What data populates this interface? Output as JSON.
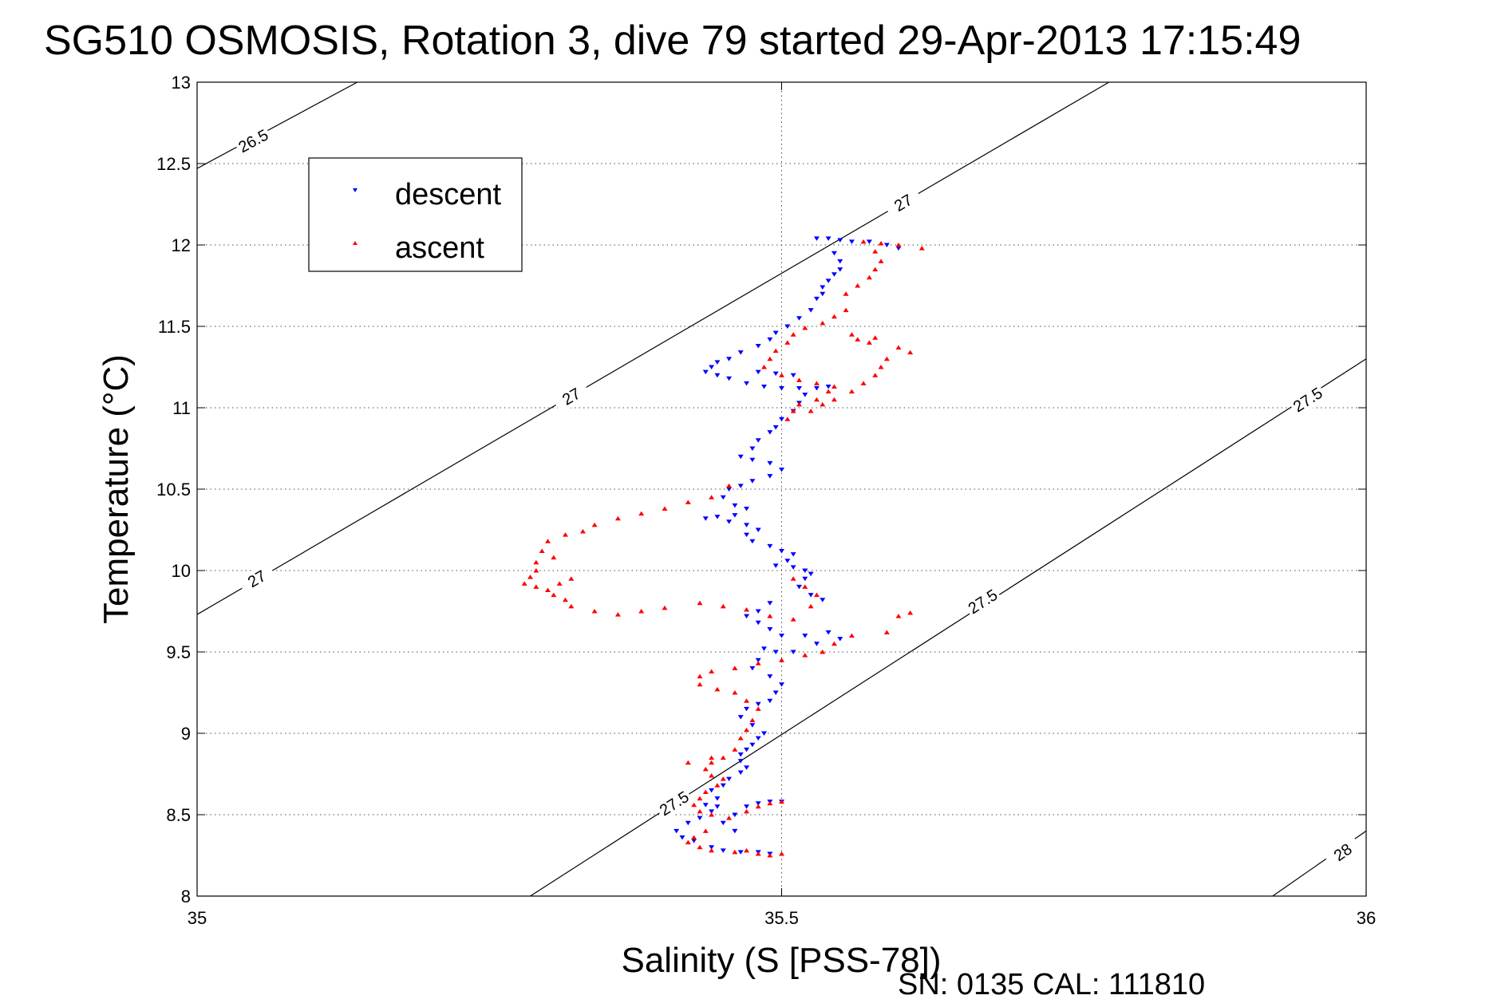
{
  "chart_data": {
    "type": "scatter",
    "title": "SG510 OSMOSIS, Rotation 3, dive 79 started 29-Apr-2013 17:15:49",
    "xlabel": "Salinity (S [PSS-78])",
    "ylabel": "Temperature (°C)",
    "xlim": [
      35,
      36
    ],
    "ylim": [
      8,
      13
    ],
    "xticks": [
      "35",
      "35.5",
      "36"
    ],
    "yticks": [
      "8",
      "8.5",
      "9",
      "9.5",
      "10",
      "10.5",
      "11",
      "11.5",
      "12",
      "12.5",
      "13"
    ],
    "xtick_values": [
      35,
      35.5,
      36
    ],
    "ytick_values": [
      8,
      8.5,
      9,
      9.5,
      10,
      10.5,
      11,
      11.5,
      12,
      12.5,
      13
    ],
    "grid": true,
    "legend_position": "top-left",
    "colors": {
      "descent": "#0000ff",
      "ascent": "#ff0000"
    },
    "markers": {
      "descent": "triangle-down",
      "ascent": "triangle-up"
    },
    "contours": [
      {
        "label": "26.5",
        "points": [
          [
            35.0,
            12.47
          ],
          [
            35.137,
            13.0
          ]
        ],
        "label_at": [
          [
            35.048,
            12.64
          ]
        ]
      },
      {
        "label": "27",
        "points": [
          [
            35.0,
            9.73
          ],
          [
            35.78,
            13.0
          ]
        ],
        "label_at": [
          [
            35.051,
            9.95
          ],
          [
            35.32,
            11.07
          ],
          [
            35.604,
            12.26
          ]
        ]
      },
      {
        "label": "27.5",
        "points": [
          [
            35.285,
            8.0
          ],
          [
            36.0,
            11.3
          ]
        ],
        "label_at": [
          [
            35.408,
            8.57
          ],
          [
            35.672,
            9.81
          ],
          [
            35.95,
            11.05
          ]
        ]
      },
      {
        "label": "28",
        "points": [
          [
            35.92,
            8.0
          ],
          [
            36.0,
            8.4
          ]
        ],
        "label_at": [
          [
            35.98,
            8.27
          ]
        ]
      }
    ],
    "series": [
      {
        "name": "descent",
        "marker": "triangle-down",
        "color": "#0000ff",
        "points": [
          [
            35.53,
            12.04
          ],
          [
            35.54,
            12.04
          ],
          [
            35.55,
            12.03
          ],
          [
            35.56,
            12.02
          ],
          [
            35.575,
            12.02
          ],
          [
            35.59,
            12.0
          ],
          [
            35.6,
            11.98
          ],
          [
            35.545,
            11.95
          ],
          [
            35.55,
            11.9
          ],
          [
            35.55,
            11.85
          ],
          [
            35.545,
            11.82
          ],
          [
            35.54,
            11.78
          ],
          [
            35.535,
            11.74
          ],
          [
            35.535,
            11.7
          ],
          [
            35.53,
            11.67
          ],
          [
            35.525,
            11.6
          ],
          [
            35.515,
            11.55
          ],
          [
            35.505,
            11.5
          ],
          [
            35.495,
            11.46
          ],
          [
            35.49,
            11.42
          ],
          [
            35.48,
            11.38
          ],
          [
            35.465,
            11.34
          ],
          [
            35.455,
            11.3
          ],
          [
            35.445,
            11.28
          ],
          [
            35.44,
            11.25
          ],
          [
            35.435,
            11.22
          ],
          [
            35.445,
            11.2
          ],
          [
            35.455,
            11.18
          ],
          [
            35.47,
            11.15
          ],
          [
            35.485,
            11.13
          ],
          [
            35.5,
            11.12
          ],
          [
            35.515,
            11.12
          ],
          [
            35.53,
            11.12
          ],
          [
            35.54,
            11.13
          ],
          [
            35.51,
            11.2
          ],
          [
            35.495,
            11.21
          ],
          [
            35.48,
            11.22
          ],
          [
            35.52,
            11.08
          ],
          [
            35.515,
            11.03
          ],
          [
            35.51,
            10.98
          ],
          [
            35.5,
            10.93
          ],
          [
            35.495,
            10.88
          ],
          [
            35.49,
            10.85
          ],
          [
            35.48,
            10.8
          ],
          [
            35.475,
            10.75
          ],
          [
            35.465,
            10.7
          ],
          [
            35.475,
            10.68
          ],
          [
            35.49,
            10.66
          ],
          [
            35.5,
            10.62
          ],
          [
            35.49,
            10.58
          ],
          [
            35.475,
            10.55
          ],
          [
            35.465,
            10.52
          ],
          [
            35.455,
            10.5
          ],
          [
            35.45,
            10.45
          ],
          [
            35.46,
            10.4
          ],
          [
            35.47,
            10.38
          ],
          [
            35.46,
            10.34
          ],
          [
            35.445,
            10.33
          ],
          [
            35.435,
            10.32
          ],
          [
            35.455,
            10.3
          ],
          [
            35.47,
            10.28
          ],
          [
            35.48,
            10.25
          ],
          [
            35.47,
            10.22
          ],
          [
            35.475,
            10.18
          ],
          [
            35.49,
            10.15
          ],
          [
            35.5,
            10.12
          ],
          [
            35.51,
            10.1
          ],
          [
            35.505,
            10.06
          ],
          [
            35.495,
            10.03
          ],
          [
            35.51,
            10.02
          ],
          [
            35.52,
            10.0
          ],
          [
            35.525,
            9.98
          ],
          [
            35.52,
            9.95
          ],
          [
            35.515,
            9.9
          ],
          [
            35.525,
            9.85
          ],
          [
            35.535,
            9.82
          ],
          [
            35.49,
            9.8
          ],
          [
            35.48,
            9.75
          ],
          [
            35.47,
            9.72
          ],
          [
            35.48,
            9.68
          ],
          [
            35.49,
            9.64
          ],
          [
            35.5,
            9.6
          ],
          [
            35.52,
            9.6
          ],
          [
            35.54,
            9.62
          ],
          [
            35.55,
            9.58
          ],
          [
            35.53,
            9.55
          ],
          [
            35.51,
            9.5
          ],
          [
            35.495,
            9.5
          ],
          [
            35.485,
            9.52
          ],
          [
            35.48,
            9.45
          ],
          [
            35.475,
            9.4
          ],
          [
            35.49,
            9.35
          ],
          [
            35.5,
            9.3
          ],
          [
            35.495,
            9.25
          ],
          [
            35.49,
            9.2
          ],
          [
            35.48,
            9.18
          ],
          [
            35.47,
            9.15
          ],
          [
            35.465,
            9.1
          ],
          [
            35.475,
            9.05
          ],
          [
            35.485,
            9.0
          ],
          [
            35.48,
            8.97
          ],
          [
            35.475,
            8.93
          ],
          [
            35.47,
            8.9
          ],
          [
            35.465,
            8.87
          ],
          [
            35.465,
            8.83
          ],
          [
            35.47,
            8.79
          ],
          [
            35.465,
            8.76
          ],
          [
            35.455,
            8.72
          ],
          [
            35.45,
            8.68
          ],
          [
            35.44,
            8.65
          ],
          [
            35.445,
            8.6
          ],
          [
            35.435,
            8.56
          ],
          [
            35.44,
            8.52
          ],
          [
            35.43,
            8.48
          ],
          [
            35.42,
            8.45
          ],
          [
            35.41,
            8.4
          ],
          [
            35.415,
            8.36
          ],
          [
            35.425,
            8.34
          ],
          [
            35.44,
            8.3
          ],
          [
            35.45,
            8.28
          ],
          [
            35.465,
            8.27
          ],
          [
            35.48,
            8.27
          ],
          [
            35.49,
            8.26
          ],
          [
            35.46,
            8.5
          ],
          [
            35.47,
            8.55
          ],
          [
            35.48,
            8.57
          ],
          [
            35.49,
            8.58
          ],
          [
            35.5,
            8.58
          ],
          [
            35.445,
            8.55
          ],
          [
            35.45,
            8.45
          ],
          [
            35.46,
            8.4
          ]
        ]
      },
      {
        "name": "ascent",
        "marker": "triangle-up",
        "color": "#ff0000",
        "points": [
          [
            35.57,
            12.02
          ],
          [
            35.585,
            12.01
          ],
          [
            35.6,
            12.0
          ],
          [
            35.62,
            11.98
          ],
          [
            35.58,
            11.96
          ],
          [
            35.585,
            11.9
          ],
          [
            35.58,
            11.85
          ],
          [
            35.575,
            11.8
          ],
          [
            35.565,
            11.75
          ],
          [
            35.555,
            11.7
          ],
          [
            35.555,
            11.6
          ],
          [
            35.545,
            11.56
          ],
          [
            35.535,
            11.52
          ],
          [
            35.52,
            11.49
          ],
          [
            35.51,
            11.45
          ],
          [
            35.505,
            11.4
          ],
          [
            35.495,
            11.35
          ],
          [
            35.49,
            11.3
          ],
          [
            35.485,
            11.25
          ],
          [
            35.5,
            11.2
          ],
          [
            35.515,
            11.17
          ],
          [
            35.53,
            11.15
          ],
          [
            35.545,
            11.13
          ],
          [
            35.54,
            11.1
          ],
          [
            35.53,
            11.05
          ],
          [
            35.515,
            11.02
          ],
          [
            35.51,
            10.98
          ],
          [
            35.505,
            10.93
          ],
          [
            35.56,
            11.45
          ],
          [
            35.565,
            11.42
          ],
          [
            35.575,
            11.4
          ],
          [
            35.58,
            11.43
          ],
          [
            35.6,
            11.37
          ],
          [
            35.61,
            11.34
          ],
          [
            35.59,
            11.3
          ],
          [
            35.585,
            11.25
          ],
          [
            35.58,
            11.2
          ],
          [
            35.57,
            11.15
          ],
          [
            35.56,
            11.1
          ],
          [
            35.545,
            11.05
          ],
          [
            35.535,
            11.02
          ],
          [
            35.525,
            10.98
          ],
          [
            35.455,
            10.52
          ],
          [
            35.44,
            10.45
          ],
          [
            35.42,
            10.42
          ],
          [
            35.4,
            10.38
          ],
          [
            35.38,
            10.35
          ],
          [
            35.36,
            10.32
          ],
          [
            35.34,
            10.28
          ],
          [
            35.33,
            10.24
          ],
          [
            35.315,
            10.22
          ],
          [
            35.3,
            10.18
          ],
          [
            35.295,
            10.12
          ],
          [
            35.305,
            10.08
          ],
          [
            35.29,
            10.05
          ],
          [
            35.29,
            10.0
          ],
          [
            35.285,
            9.96
          ],
          [
            35.28,
            9.92
          ],
          [
            35.29,
            9.9
          ],
          [
            35.3,
            9.88
          ],
          [
            35.31,
            9.92
          ],
          [
            35.32,
            9.95
          ],
          [
            35.305,
            9.85
          ],
          [
            35.315,
            9.82
          ],
          [
            35.32,
            9.78
          ],
          [
            35.34,
            9.75
          ],
          [
            35.36,
            9.73
          ],
          [
            35.38,
            9.75
          ],
          [
            35.4,
            9.77
          ],
          [
            35.43,
            9.8
          ],
          [
            35.45,
            9.78
          ],
          [
            35.47,
            9.76
          ],
          [
            35.49,
            9.72
          ],
          [
            35.51,
            9.7
          ],
          [
            35.525,
            9.78
          ],
          [
            35.53,
            9.85
          ],
          [
            35.52,
            9.9
          ],
          [
            35.51,
            9.95
          ],
          [
            35.6,
            9.72
          ],
          [
            35.61,
            9.74
          ],
          [
            35.59,
            9.62
          ],
          [
            35.56,
            9.6
          ],
          [
            35.545,
            9.55
          ],
          [
            35.535,
            9.5
          ],
          [
            35.52,
            9.48
          ],
          [
            35.5,
            9.45
          ],
          [
            35.48,
            9.43
          ],
          [
            35.46,
            9.4
          ],
          [
            35.44,
            9.38
          ],
          [
            35.43,
            9.35
          ],
          [
            35.43,
            9.3
          ],
          [
            35.445,
            9.27
          ],
          [
            35.46,
            9.25
          ],
          [
            35.47,
            9.2
          ],
          [
            35.48,
            9.15
          ],
          [
            35.475,
            9.08
          ],
          [
            35.47,
            9.02
          ],
          [
            35.465,
            8.97
          ],
          [
            35.46,
            8.9
          ],
          [
            35.45,
            8.85
          ],
          [
            35.44,
            8.82
          ],
          [
            35.435,
            8.78
          ],
          [
            35.44,
            8.74
          ],
          [
            35.45,
            8.72
          ],
          [
            35.445,
            8.68
          ],
          [
            35.435,
            8.64
          ],
          [
            35.43,
            8.6
          ],
          [
            35.425,
            8.56
          ],
          [
            35.43,
            8.52
          ],
          [
            35.44,
            8.5
          ],
          [
            35.455,
            8.48
          ],
          [
            35.47,
            8.52
          ],
          [
            35.48,
            8.55
          ],
          [
            35.49,
            8.57
          ],
          [
            35.5,
            8.58
          ],
          [
            35.435,
            8.4
          ],
          [
            35.425,
            8.36
          ],
          [
            35.42,
            8.33
          ],
          [
            35.43,
            8.3
          ],
          [
            35.44,
            8.28
          ],
          [
            35.46,
            8.27
          ],
          [
            35.47,
            8.28
          ],
          [
            35.48,
            8.26
          ],
          [
            35.49,
            8.25
          ],
          [
            35.5,
            8.26
          ],
          [
            35.42,
            8.82
          ],
          [
            35.44,
            8.85
          ]
        ]
      }
    ]
  },
  "legend": {
    "descent": "descent",
    "ascent": "ascent"
  },
  "footer": {
    "serial": "SN: 0135  CAL: 111810"
  }
}
